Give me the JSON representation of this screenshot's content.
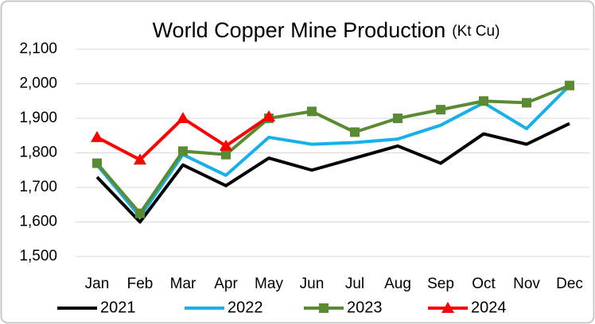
{
  "chart_data": {
    "type": "line",
    "title": "World Copper Mine Production",
    "unit": "(Kt Cu)",
    "categories": [
      "Jan",
      "Feb",
      "Mar",
      "Apr",
      "May",
      "Jun",
      "Jul",
      "Aug",
      "Sep",
      "Oct",
      "Nov",
      "Dec"
    ],
    "series": [
      {
        "name": "2021",
        "color": "#000000",
        "marker": "none",
        "values": [
          1730,
          1600,
          1765,
          1705,
          1785,
          1750,
          1785,
          1820,
          1770,
          1855,
          1825,
          1885
        ]
      },
      {
        "name": "2022",
        "color": "#17b0ea",
        "marker": "none",
        "values": [
          1765,
          1615,
          1795,
          1735,
          1845,
          1825,
          1830,
          1840,
          1880,
          1945,
          1870,
          1995
        ]
      },
      {
        "name": "2023",
        "color": "#5a8a32",
        "marker": "square",
        "values": [
          1770,
          1625,
          1805,
          1795,
          1900,
          1920,
          1860,
          1900,
          1925,
          1950,
          1945,
          1995
        ]
      },
      {
        "name": "2024",
        "color": "#ff0000",
        "marker": "triangle",
        "values": [
          1845,
          1780,
          1900,
          1820,
          1905,
          null,
          null,
          null,
          null,
          null,
          null,
          null
        ]
      }
    ],
    "ylim": [
      1500,
      2100
    ],
    "yticks": [
      {
        "value": 1500,
        "label": "1,500"
      },
      {
        "value": 1600,
        "label": "1,600"
      },
      {
        "value": 1700,
        "label": "1,700"
      },
      {
        "value": 1800,
        "label": "1,800"
      },
      {
        "value": 1900,
        "label": "1,900"
      },
      {
        "value": 2000,
        "label": "2,000"
      },
      {
        "value": 2100,
        "label": "2,100"
      }
    ],
    "grid": true,
    "legend": "bottom"
  }
}
